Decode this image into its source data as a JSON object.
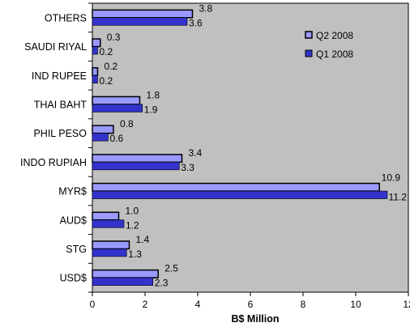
{
  "chart_data": {
    "type": "bar",
    "orientation": "horizontal",
    "categories": [
      "OTHERS",
      "SAUDI RIYAL",
      "IND RUPEE",
      "THAI BAHT",
      "PHIL PESO",
      "INDO RUPIAH",
      "MYR$",
      "AUD$",
      "STG",
      "USD$"
    ],
    "series": [
      {
        "name": "Q2 2008",
        "values": [
          3.8,
          0.3,
          0.2,
          1.8,
          0.8,
          3.4,
          10.9,
          1.0,
          1.4,
          2.5
        ],
        "color": "#9999ff",
        "labels": [
          "3.8",
          "0.3",
          "0.2",
          "1.8",
          "0.8",
          "3.4",
          "10.9",
          "1.0",
          "1.4",
          "2.5"
        ]
      },
      {
        "name": "Q1 2008",
        "values": [
          3.6,
          0.2,
          0.2,
          1.9,
          0.6,
          3.3,
          11.2,
          1.2,
          1.3,
          2.3
        ],
        "color": "#3333cc",
        "labels": [
          "3.6",
          "0.2",
          "0.2",
          "1.9",
          "0.6",
          "3.3",
          "11.2",
          "1.2",
          "1.3",
          "2.3"
        ]
      }
    ],
    "xlabel": "B$ Million",
    "xlim": [
      0,
      12
    ],
    "xticks": [
      "0",
      "2",
      "4",
      "6",
      "8",
      "10",
      "12"
    ],
    "plot_background": "#c0c0c0",
    "legend_position": "top-right",
    "grid": false
  }
}
